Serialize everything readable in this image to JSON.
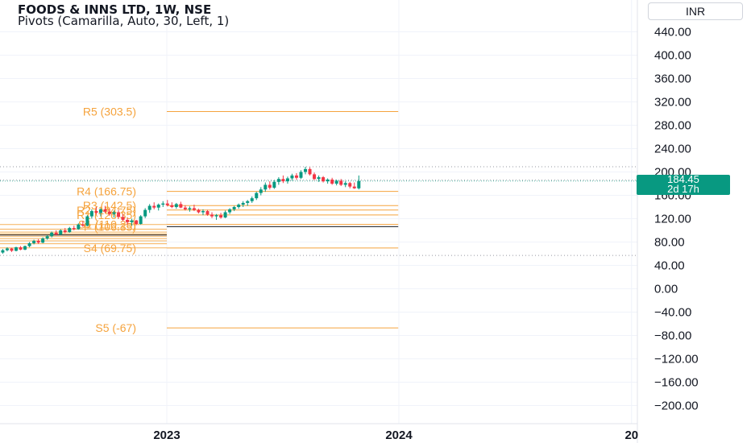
{
  "header": {
    "title": "FOODS & INNS LTD, 1W, NSE",
    "indicator": "Pivots (Camarilla, Auto, 30, Left, 1)",
    "currency": "INR"
  },
  "price_tag": {
    "price": "184.45",
    "countdown": "2d 17h"
  },
  "colors": {
    "up": "#089981",
    "down": "#f23645",
    "pivot": "#f5a33d",
    "pivot_p": "#131722",
    "grid": "#f0f3fa",
    "tag": "#089981"
  },
  "chart_data": {
    "type": "candlestick",
    "y_ticks": [
      "440.00",
      "400.00",
      "360.00",
      "320.00",
      "280.00",
      "240.00",
      "200.00",
      "160.00",
      "120.00",
      "80.00",
      "40.00",
      "0.00",
      "−40.00",
      "−80.00",
      "−120.00",
      "−160.00",
      "−200.00"
    ],
    "ylim": [
      -200,
      440
    ],
    "x_ticks": [
      {
        "label": "2023",
        "date": "2023-01-01"
      },
      {
        "label": "2024",
        "date": "2024-01-01"
      },
      {
        "label": "20",
        "date": "2025-01-01"
      }
    ],
    "last_price": 184.45,
    "dotted_levels": [
      209,
      186,
      57
    ],
    "pivot_levels": [
      {
        "label": "R5 (303.5)",
        "value": 303.5,
        "from": "2023-01-01",
        "to": "2023-12-31"
      },
      {
        "label": "R4 (166.75)",
        "value": 166.75,
        "from": "2023-01-01",
        "to": "2023-12-31"
      },
      {
        "label": "R3 (142.5)",
        "value": 142.5,
        "from": "2023-01-01",
        "to": "2023-12-31"
      },
      {
        "label": "R2 (134.75)",
        "value": 134.75,
        "from": "2023-01-01",
        "to": "2023-12-31"
      },
      {
        "label": "R1 (126.35)",
        "value": 126.35,
        "from": "2023-01-01",
        "to": "2023-12-31"
      },
      {
        "label": "P (106.35)",
        "value": 106.35,
        "from": "2023-01-01",
        "to": "2023-12-31"
      },
      {
        "label": "S1 (110.25)",
        "value": 110.25,
        "from": "2023-01-01",
        "to": "2023-12-31"
      },
      {
        "label": "S4 (69.75)",
        "value": 69.75,
        "from": "2023-01-01",
        "to": "2023-12-31"
      },
      {
        "label": "S5 (-67)",
        "value": -67,
        "from": "2023-01-01",
        "to": "2023-12-31"
      }
    ],
    "candles": [
      {
        "date": "2022-01-03",
        "o": 84,
        "h": 88,
        "l": 80,
        "c": 85
      },
      {
        "date": "2022-01-10",
        "o": 85,
        "h": 87,
        "l": 79,
        "c": 80
      },
      {
        "date": "2022-01-17",
        "o": 80,
        "h": 85,
        "l": 75,
        "c": 76
      },
      {
        "date": "2022-01-24",
        "o": 76,
        "h": 79,
        "l": 71,
        "c": 74
      },
      {
        "date": "2022-01-31",
        "o": 74,
        "h": 82,
        "l": 72,
        "c": 79
      },
      {
        "date": "2022-02-07",
        "o": 79,
        "h": 80,
        "l": 72,
        "c": 73
      },
      {
        "date": "2022-02-14",
        "o": 73,
        "h": 77,
        "l": 70,
        "c": 75
      },
      {
        "date": "2022-02-21",
        "o": 75,
        "h": 76,
        "l": 68,
        "c": 70
      },
      {
        "date": "2022-02-28",
        "o": 70,
        "h": 77,
        "l": 68,
        "c": 75
      },
      {
        "date": "2022-03-07",
        "o": 75,
        "h": 78,
        "l": 71,
        "c": 72
      },
      {
        "date": "2022-03-14",
        "o": 72,
        "h": 76,
        "l": 69,
        "c": 74
      },
      {
        "date": "2022-03-21",
        "o": 74,
        "h": 75,
        "l": 68,
        "c": 69
      },
      {
        "date": "2022-03-28",
        "o": 69,
        "h": 72,
        "l": 64,
        "c": 66
      },
      {
        "date": "2022-04-04",
        "o": 66,
        "h": 70,
        "l": 62,
        "c": 68
      },
      {
        "date": "2022-04-11",
        "o": 68,
        "h": 72,
        "l": 60,
        "c": 62
      },
      {
        "date": "2022-04-18",
        "o": 62,
        "h": 68,
        "l": 60,
        "c": 66
      },
      {
        "date": "2022-04-25",
        "o": 66,
        "h": 71,
        "l": 64,
        "c": 69
      },
      {
        "date": "2022-05-02",
        "o": 69,
        "h": 70,
        "l": 63,
        "c": 65
      },
      {
        "date": "2022-05-09",
        "o": 65,
        "h": 72,
        "l": 64,
        "c": 71
      },
      {
        "date": "2022-05-16",
        "o": 71,
        "h": 73,
        "l": 66,
        "c": 67
      },
      {
        "date": "2022-05-23",
        "o": 67,
        "h": 74,
        "l": 66,
        "c": 73
      },
      {
        "date": "2022-05-30",
        "o": 73,
        "h": 80,
        "l": 71,
        "c": 78
      },
      {
        "date": "2022-06-06",
        "o": 78,
        "h": 84,
        "l": 76,
        "c": 82
      },
      {
        "date": "2022-06-13",
        "o": 82,
        "h": 85,
        "l": 77,
        "c": 79
      },
      {
        "date": "2022-06-20",
        "o": 79,
        "h": 88,
        "l": 78,
        "c": 86
      },
      {
        "date": "2022-06-27",
        "o": 86,
        "h": 92,
        "l": 84,
        "c": 90
      },
      {
        "date": "2022-07-04",
        "o": 90,
        "h": 98,
        "l": 88,
        "c": 96
      },
      {
        "date": "2022-07-11",
        "o": 96,
        "h": 100,
        "l": 91,
        "c": 93
      },
      {
        "date": "2022-07-18",
        "o": 93,
        "h": 102,
        "l": 92,
        "c": 100
      },
      {
        "date": "2022-07-25",
        "o": 100,
        "h": 104,
        "l": 95,
        "c": 97
      },
      {
        "date": "2022-08-01",
        "o": 97,
        "h": 106,
        "l": 96,
        "c": 104
      },
      {
        "date": "2022-08-08",
        "o": 104,
        "h": 108,
        "l": 100,
        "c": 102
      },
      {
        "date": "2022-08-15",
        "o": 102,
        "h": 112,
        "l": 101,
        "c": 110
      },
      {
        "date": "2022-08-22",
        "o": 110,
        "h": 116,
        "l": 106,
        "c": 108
      },
      {
        "date": "2022-08-29",
        "o": 108,
        "h": 126,
        "l": 107,
        "c": 124
      },
      {
        "date": "2022-09-05",
        "o": 124,
        "h": 136,
        "l": 120,
        "c": 133
      },
      {
        "date": "2022-09-12",
        "o": 133,
        "h": 140,
        "l": 127,
        "c": 130
      },
      {
        "date": "2022-09-19",
        "o": 130,
        "h": 138,
        "l": 124,
        "c": 136
      },
      {
        "date": "2022-09-26",
        "o": 136,
        "h": 142,
        "l": 130,
        "c": 132
      },
      {
        "date": "2022-10-03",
        "o": 132,
        "h": 137,
        "l": 125,
        "c": 128
      },
      {
        "date": "2022-10-10",
        "o": 128,
        "h": 134,
        "l": 122,
        "c": 131
      },
      {
        "date": "2022-10-17",
        "o": 131,
        "h": 135,
        "l": 120,
        "c": 123
      },
      {
        "date": "2022-10-24",
        "o": 123,
        "h": 128,
        "l": 116,
        "c": 118
      },
      {
        "date": "2022-10-31",
        "o": 118,
        "h": 121,
        "l": 110,
        "c": 114
      },
      {
        "date": "2022-11-07",
        "o": 114,
        "h": 120,
        "l": 108,
        "c": 117
      },
      {
        "date": "2022-11-14",
        "o": 117,
        "h": 118,
        "l": 109,
        "c": 111
      },
      {
        "date": "2022-11-21",
        "o": 111,
        "h": 126,
        "l": 110,
        "c": 124
      },
      {
        "date": "2022-11-28",
        "o": 124,
        "h": 138,
        "l": 121,
        "c": 135
      },
      {
        "date": "2022-12-05",
        "o": 135,
        "h": 145,
        "l": 130,
        "c": 142
      },
      {
        "date": "2022-12-12",
        "o": 142,
        "h": 148,
        "l": 136,
        "c": 139
      },
      {
        "date": "2022-12-19",
        "o": 139,
        "h": 146,
        "l": 134,
        "c": 144
      },
      {
        "date": "2022-12-26",
        "o": 144,
        "h": 150,
        "l": 140,
        "c": 146
      },
      {
        "date": "2023-01-02",
        "o": 146,
        "h": 152,
        "l": 141,
        "c": 143
      },
      {
        "date": "2023-01-09",
        "o": 143,
        "h": 148,
        "l": 138,
        "c": 140
      },
      {
        "date": "2023-01-16",
        "o": 140,
        "h": 147,
        "l": 137,
        "c": 145
      },
      {
        "date": "2023-01-23",
        "o": 145,
        "h": 149,
        "l": 138,
        "c": 139
      },
      {
        "date": "2023-01-30",
        "o": 139,
        "h": 143,
        "l": 134,
        "c": 136
      },
      {
        "date": "2023-02-06",
        "o": 136,
        "h": 141,
        "l": 132,
        "c": 138
      },
      {
        "date": "2023-02-13",
        "o": 138,
        "h": 144,
        "l": 133,
        "c": 135
      },
      {
        "date": "2023-02-20",
        "o": 135,
        "h": 137,
        "l": 129,
        "c": 131
      },
      {
        "date": "2023-02-27",
        "o": 131,
        "h": 136,
        "l": 126,
        "c": 133
      },
      {
        "date": "2023-03-06",
        "o": 133,
        "h": 135,
        "l": 125,
        "c": 127
      },
      {
        "date": "2023-03-13",
        "o": 127,
        "h": 131,
        "l": 121,
        "c": 124
      },
      {
        "date": "2023-03-20",
        "o": 124,
        "h": 128,
        "l": 118,
        "c": 126
      },
      {
        "date": "2023-03-27",
        "o": 126,
        "h": 130,
        "l": 120,
        "c": 122
      },
      {
        "date": "2023-04-03",
        "o": 122,
        "h": 134,
        "l": 121,
        "c": 131
      },
      {
        "date": "2023-04-10",
        "o": 131,
        "h": 138,
        "l": 128,
        "c": 136
      },
      {
        "date": "2023-04-17",
        "o": 136,
        "h": 142,
        "l": 133,
        "c": 140
      },
      {
        "date": "2023-04-24",
        "o": 140,
        "h": 146,
        "l": 137,
        "c": 144
      },
      {
        "date": "2023-05-01",
        "o": 144,
        "h": 150,
        "l": 140,
        "c": 147
      },
      {
        "date": "2023-05-08",
        "o": 147,
        "h": 152,
        "l": 142,
        "c": 150
      },
      {
        "date": "2023-05-15",
        "o": 150,
        "h": 158,
        "l": 147,
        "c": 155
      },
      {
        "date": "2023-05-22",
        "o": 155,
        "h": 166,
        "l": 152,
        "c": 164
      },
      {
        "date": "2023-05-29",
        "o": 164,
        "h": 174,
        "l": 160,
        "c": 170
      },
      {
        "date": "2023-06-05",
        "o": 170,
        "h": 182,
        "l": 166,
        "c": 178
      },
      {
        "date": "2023-06-12",
        "o": 178,
        "h": 184,
        "l": 170,
        "c": 173
      },
      {
        "date": "2023-06-19",
        "o": 173,
        "h": 186,
        "l": 171,
        "c": 183
      },
      {
        "date": "2023-06-26",
        "o": 183,
        "h": 191,
        "l": 178,
        "c": 188
      },
      {
        "date": "2023-07-03",
        "o": 188,
        "h": 194,
        "l": 181,
        "c": 184
      },
      {
        "date": "2023-07-10",
        "o": 184,
        "h": 192,
        "l": 180,
        "c": 189
      },
      {
        "date": "2023-07-17",
        "o": 189,
        "h": 197,
        "l": 185,
        "c": 194
      },
      {
        "date": "2023-07-24",
        "o": 194,
        "h": 198,
        "l": 187,
        "c": 190
      },
      {
        "date": "2023-07-31",
        "o": 190,
        "h": 203,
        "l": 188,
        "c": 200
      },
      {
        "date": "2023-08-07",
        "o": 200,
        "h": 209,
        "l": 196,
        "c": 205
      },
      {
        "date": "2023-08-14",
        "o": 205,
        "h": 208,
        "l": 194,
        "c": 196
      },
      {
        "date": "2023-08-21",
        "o": 196,
        "h": 199,
        "l": 186,
        "c": 188
      },
      {
        "date": "2023-08-28",
        "o": 188,
        "h": 194,
        "l": 183,
        "c": 191
      },
      {
        "date": "2023-09-04",
        "o": 191,
        "h": 193,
        "l": 182,
        "c": 184
      },
      {
        "date": "2023-09-11",
        "o": 184,
        "h": 189,
        "l": 180,
        "c": 187
      },
      {
        "date": "2023-09-18",
        "o": 187,
        "h": 190,
        "l": 178,
        "c": 180
      },
      {
        "date": "2023-09-25",
        "o": 180,
        "h": 187,
        "l": 177,
        "c": 185
      },
      {
        "date": "2023-10-02",
        "o": 185,
        "h": 188,
        "l": 176,
        "c": 178
      },
      {
        "date": "2023-10-09",
        "o": 178,
        "h": 184,
        "l": 174,
        "c": 181
      },
      {
        "date": "2023-10-16",
        "o": 181,
        "h": 183,
        "l": 172,
        "c": 175
      },
      {
        "date": "2023-10-23",
        "o": 175,
        "h": 182,
        "l": 171,
        "c": 172
      },
      {
        "date": "2023-10-30",
        "o": 172,
        "h": 194,
        "l": 170,
        "c": 184.45
      }
    ]
  }
}
